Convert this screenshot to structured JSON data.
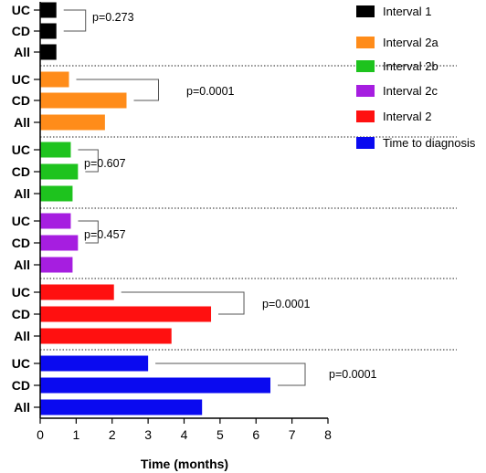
{
  "chart_data": {
    "type": "bar",
    "orientation": "horizontal",
    "xlabel": "Time (months)",
    "xlim": [
      0,
      8
    ],
    "xticks": [
      "0",
      "1",
      "2",
      "3",
      "4",
      "5",
      "6",
      "7",
      "8"
    ],
    "legend_position": "right",
    "groups": [
      {
        "name": "Interval 1",
        "color": "#000000",
        "p_value": "p=0.273",
        "bars": [
          {
            "label": "UC",
            "value": 0.45
          },
          {
            "label": "CD",
            "value": 0.45
          },
          {
            "label": "All",
            "value": 0.45
          }
        ]
      },
      {
        "name": "Interval 2a",
        "color": "#FF8C1A",
        "p_value": "p=0.0001",
        "bars": [
          {
            "label": "UC",
            "value": 0.8
          },
          {
            "label": "CD",
            "value": 2.4
          },
          {
            "label": "All",
            "value": 1.8
          }
        ]
      },
      {
        "name": "Interval 2b",
        "color": "#1EC31E",
        "p_value": "p=0.607",
        "bars": [
          {
            "label": "UC",
            "value": 0.85
          },
          {
            "label": "CD",
            "value": 1.05
          },
          {
            "label": "All",
            "value": 0.9
          }
        ]
      },
      {
        "name": "Interval 2c",
        "color": "#A61EE0",
        "p_value": "p=0.457",
        "bars": [
          {
            "label": "UC",
            "value": 0.85
          },
          {
            "label": "CD",
            "value": 1.05
          },
          {
            "label": "All",
            "value": 0.9
          }
        ]
      },
      {
        "name": "Interval 2",
        "color": "#FF1010",
        "p_value": "p=0.0001",
        "bars": [
          {
            "label": "UC",
            "value": 2.05
          },
          {
            "label": "CD",
            "value": 4.75
          },
          {
            "label": "All",
            "value": 3.65
          }
        ]
      },
      {
        "name": "Time to diagnosis",
        "color": "#0A0AF0",
        "p_value": "p=0.0001",
        "bars": [
          {
            "label": "UC",
            "value": 3.0
          },
          {
            "label": "CD",
            "value": 6.4
          },
          {
            "label": "All",
            "value": 4.5
          }
        ]
      }
    ]
  }
}
